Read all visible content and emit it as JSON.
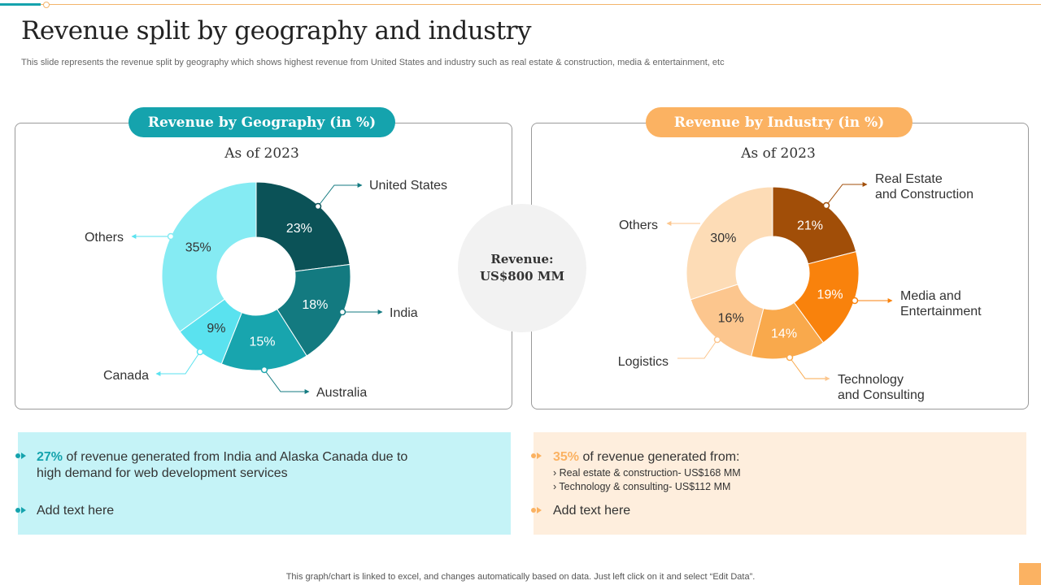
{
  "title": "Revenue split by geography and industry",
  "subtitle": "This slide represents the revenue split by geography which shows highest revenue from United States and industry such as real estate & construction, media & entertainment, etc",
  "center": {
    "line1": "Revenue:",
    "line2": "US$800  MM"
  },
  "colors": {
    "teal": "#15a3ad",
    "orange": "#fbb262",
    "teal_bg": "#c5f3f7",
    "orange_bg": "#feeedd"
  },
  "chart_data": [
    {
      "type": "donut",
      "title": "Revenue by Geography (in %)",
      "subtitle": "As of 2023",
      "categories": [
        "United States",
        "India",
        "Australia",
        "Canada",
        "Others"
      ],
      "values": [
        23,
        18,
        15,
        9,
        35
      ],
      "value_labels": [
        "23%",
        "18%",
        "15%",
        "9%",
        "35%"
      ],
      "colors": [
        "#0b5257",
        "#137a80",
        "#18a5ae",
        "#5ae2ef",
        "#85ebf3"
      ]
    },
    {
      "type": "donut",
      "title": "Revenue by Industry (in %)",
      "subtitle": "As of 2023",
      "categories": [
        "Real Estate and Construction",
        "Media and Entertainment",
        "Technology and Consulting",
        "Logistics",
        "Others"
      ],
      "values": [
        21,
        19,
        14,
        16,
        30
      ],
      "value_labels": [
        "21%",
        "19%",
        "14%",
        "16%",
        "30%"
      ],
      "colors": [
        "#a14e08",
        "#f9820c",
        "#f9a94c",
        "#fcc68e",
        "#fddcb6"
      ]
    }
  ],
  "notes": {
    "left": {
      "b1_highlight": "27%",
      "b1_line1": " of revenue  generated from India and Alaska Canada due to",
      "b1_line2": "high demand for web development services",
      "b2": "Add text here"
    },
    "right": {
      "b1_highlight": "35%",
      "b1_text": " of revenue  generated from:",
      "subs": [
        "›   Real estate & construction- US$168 MM",
        "›   Technology  & consulting- US$112 MM"
      ],
      "b2": "Add text here"
    }
  },
  "footer": "This graph/chart is linked to excel,  and changes automatically based on data. Just left click on it and select “Edit Data”."
}
